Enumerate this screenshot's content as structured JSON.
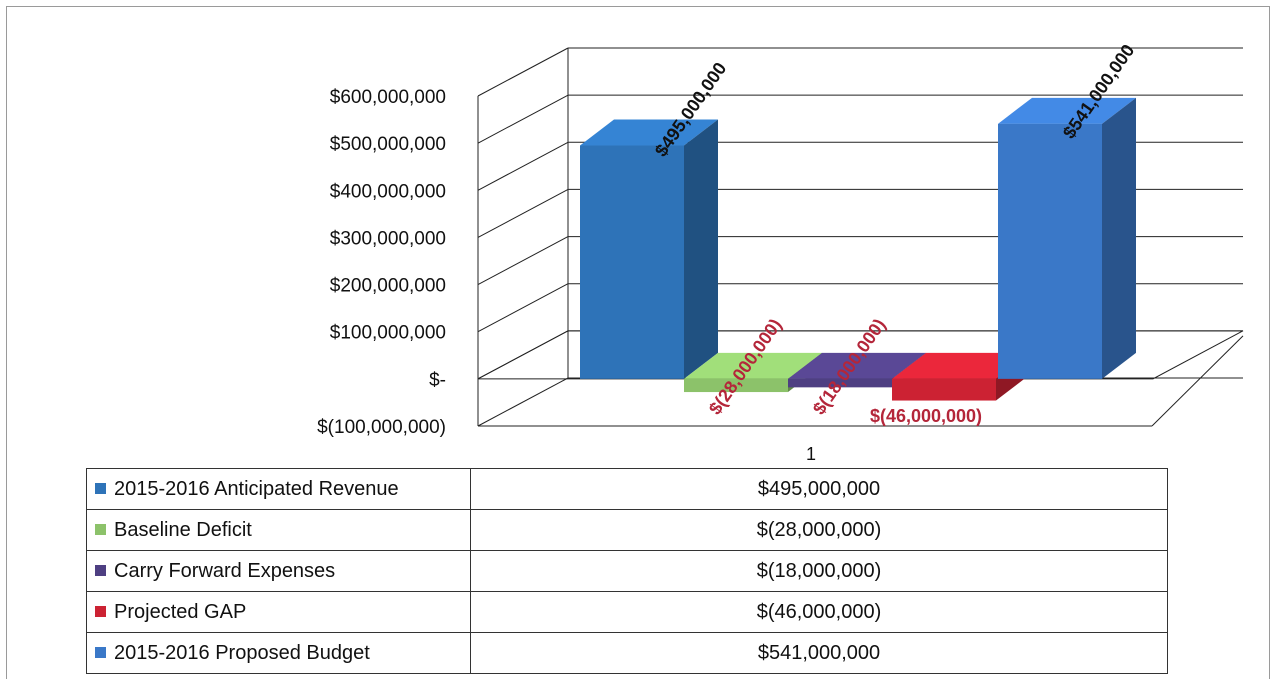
{
  "chart_data": {
    "type": "bar",
    "categories": [
      "1"
    ],
    "ylim": [
      -100000000,
      600000000
    ],
    "y_ticks": [
      "$600,000,000",
      "$500,000,000",
      "$400,000,000",
      "$300,000,000",
      "$200,000,000",
      "$100,000,000",
      "$-",
      "$(100,000,000)"
    ],
    "grid": true,
    "legend_placement": "data-table",
    "series": [
      {
        "name": "2015-2016 Anticipated Revenue",
        "value": 495000000,
        "label": "$495,000,000",
        "color": "#2e73b8"
      },
      {
        "name": "Baseline Deficit",
        "value": -28000000,
        "label": "$(28,000,000)",
        "color": "#8cc26a"
      },
      {
        "name": "Carry Forward Expenses",
        "value": -18000000,
        "label": "$(18,000,000)",
        "color": "#4e3f82"
      },
      {
        "name": "Projected GAP",
        "value": -46000000,
        "label": "$(46,000,000)",
        "color": "#cc2233"
      },
      {
        "name": "2015-2016 Proposed Budget",
        "value": 541000000,
        "label": "$541,000,000",
        "color": "#3a78c8"
      }
    ]
  }
}
